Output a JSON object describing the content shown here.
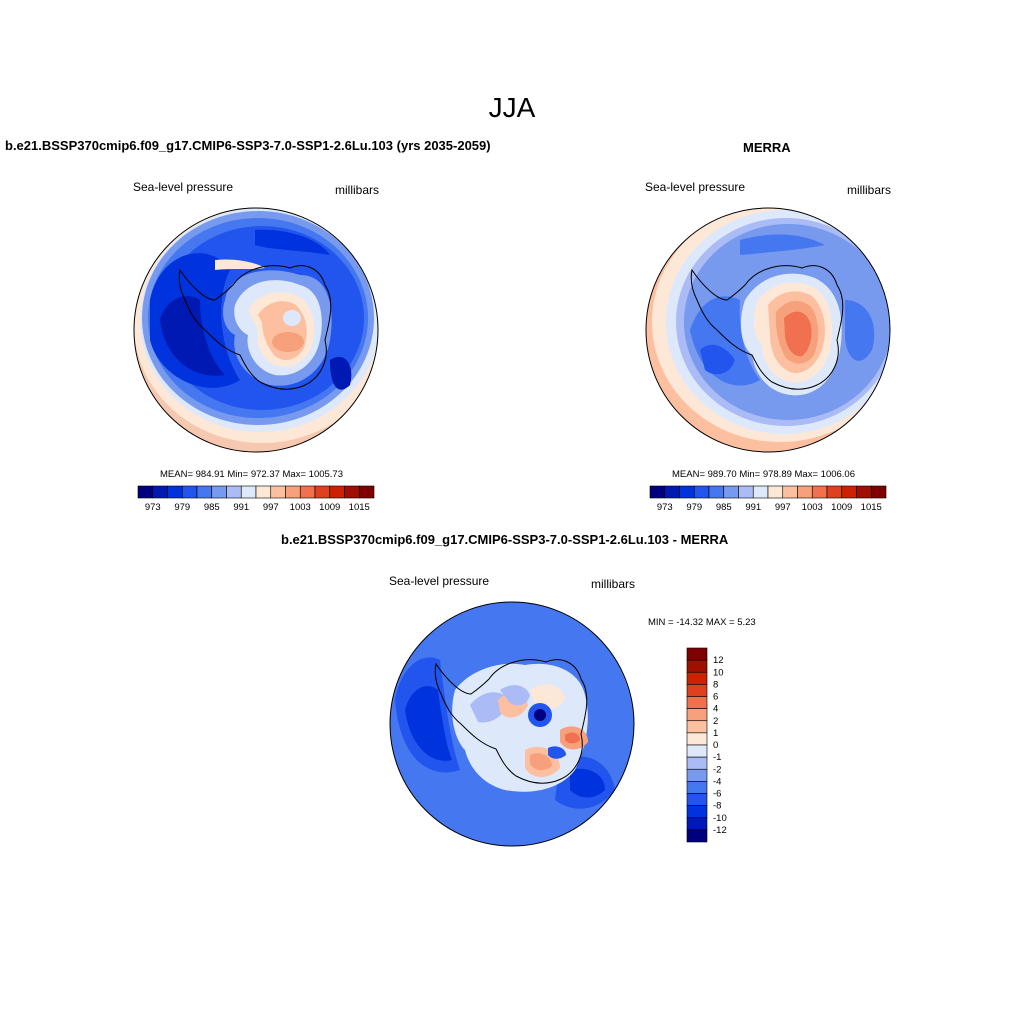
{
  "figure": {
    "title": "JJA"
  },
  "panels": {
    "model": {
      "title": "b.e21.BSSP370cmip6.f09_g17.CMIP6-SSP3-7.0-SSP1-2.6Lu.103 (yrs 2035-2059)",
      "variable": "Sea-level pressure",
      "units": "millibars",
      "stats": "MEAN= 984.91  Min= 972.37  Max= 1005.73",
      "mean": 984.91,
      "min": 972.37,
      "max": 1005.73
    },
    "obs": {
      "title": "MERRA",
      "variable": "Sea-level pressure",
      "units": "millibars",
      "stats": "MEAN= 989.70  Min= 978.89  Max= 1006.06",
      "mean": 989.7,
      "min": 978.89,
      "max": 1006.06
    },
    "diff": {
      "title": "b.e21.BSSP370cmip6.f09_g17.CMIP6-SSP3-7.0-SSP1-2.6Lu.103 - MERRA",
      "variable": "Sea-level pressure",
      "units": "millibars",
      "stats": "MIN = -14.32 MAX =   5.23",
      "min": -14.32,
      "max": 5.23
    }
  },
  "colorbar_abs": {
    "orientation": "horizontal",
    "colors": [
      "#00007f",
      "#0019b3",
      "#0033dd",
      "#2255ee",
      "#4477f0",
      "#7799ee",
      "#aabbf5",
      "#dde8fb",
      "#fde8d8",
      "#fcc0a0",
      "#f7a07c",
      "#f07050",
      "#e04020",
      "#cc2200",
      "#a01000",
      "#7f0000"
    ],
    "labels": [
      "973",
      "979",
      "985",
      "991",
      "997",
      "1003",
      "1009",
      "1015"
    ]
  },
  "colorbar_diff": {
    "orientation": "vertical",
    "colors": [
      "#7f0000",
      "#a01000",
      "#cc2200",
      "#e04020",
      "#f07050",
      "#f7a07c",
      "#fcc0a0",
      "#fde8d8",
      "#dde8fb",
      "#aabbf5",
      "#7799ee",
      "#4477f0",
      "#2255ee",
      "#0033dd",
      "#0019b3",
      "#00007f"
    ],
    "labels": [
      "12",
      "10",
      "8",
      "6",
      "4",
      "2",
      "1",
      "0",
      "-1",
      "-2",
      "-4",
      "-6",
      "-8",
      "-10",
      "-12"
    ]
  }
}
